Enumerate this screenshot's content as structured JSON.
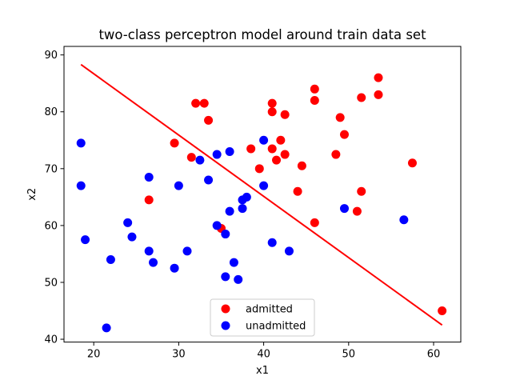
{
  "chart_data": {
    "type": "scatter",
    "title": "two-class perceptron model around train data set",
    "xlabel": "x1",
    "ylabel": "x2",
    "xlim": [
      16.5,
      63.2
    ],
    "ylim": [
      39.5,
      91.5
    ],
    "xticks": [
      20,
      30,
      40,
      50,
      60
    ],
    "yticks": [
      40,
      50,
      60,
      70,
      80,
      90
    ],
    "grid": false,
    "legend_position": "lower-center",
    "series": [
      {
        "name": "admitted",
        "color": "#ff0000",
        "points": [
          [
            32,
            81.5
          ],
          [
            33,
            81.5
          ],
          [
            33.5,
            78.5
          ],
          [
            29.5,
            74.5
          ],
          [
            31.5,
            72
          ],
          [
            26.5,
            64.5
          ],
          [
            35,
            59.5
          ],
          [
            38.5,
            73.5
          ],
          [
            39.5,
            70
          ],
          [
            41,
            81.5
          ],
          [
            41,
            80
          ],
          [
            42.5,
            79.5
          ],
          [
            41,
            73.5
          ],
          [
            42,
            75
          ],
          [
            41.5,
            71.5
          ],
          [
            42.5,
            72.5
          ],
          [
            44,
            66
          ],
          [
            44.5,
            70.5
          ],
          [
            46,
            84
          ],
          [
            46,
            82
          ],
          [
            46,
            60.5
          ],
          [
            48.5,
            72.5
          ],
          [
            49,
            79
          ],
          [
            49.5,
            76
          ],
          [
            51,
            62.5
          ],
          [
            51.5,
            82.5
          ],
          [
            51.5,
            66
          ],
          [
            53.5,
            86
          ],
          [
            53.5,
            83
          ],
          [
            57.5,
            71
          ],
          [
            61,
            45
          ]
        ]
      },
      {
        "name": "unadmitted",
        "color": "#0000ff",
        "points": [
          [
            18.5,
            74.5
          ],
          [
            18.5,
            67
          ],
          [
            19,
            57.5
          ],
          [
            21.5,
            42
          ],
          [
            22,
            54
          ],
          [
            24,
            60.5
          ],
          [
            24.5,
            58
          ],
          [
            26.5,
            68.5
          ],
          [
            26.5,
            55.5
          ],
          [
            27,
            53.5
          ],
          [
            29.5,
            52.5
          ],
          [
            30,
            67
          ],
          [
            31,
            55.5
          ],
          [
            32.5,
            71.5
          ],
          [
            33.5,
            68
          ],
          [
            34.5,
            72.5
          ],
          [
            34.5,
            60
          ],
          [
            35.5,
            58.5
          ],
          [
            35.5,
            51
          ],
          [
            36,
            73
          ],
          [
            36,
            62.5
          ],
          [
            36.5,
            53.5
          ],
          [
            37,
            50.5
          ],
          [
            37.5,
            64.5
          ],
          [
            37.5,
            63
          ],
          [
            38,
            65
          ],
          [
            40,
            75
          ],
          [
            40,
            67
          ],
          [
            41,
            57
          ],
          [
            43,
            55.5
          ],
          [
            49.5,
            63
          ],
          [
            56.5,
            61
          ]
        ]
      }
    ],
    "line": {
      "color": "#ff0000",
      "points": [
        [
          18.5,
          88.3
        ],
        [
          61,
          42.5
        ]
      ]
    }
  }
}
